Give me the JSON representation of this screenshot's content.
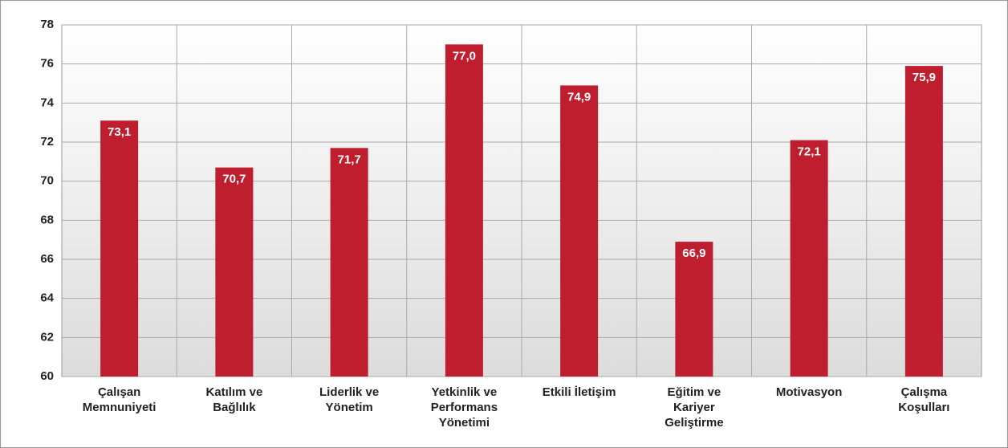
{
  "chart_data": {
    "type": "bar",
    "categories": [
      "Çalışan Memnuniyeti",
      "Katılım ve Bağlılık",
      "Liderlik ve Yönetim",
      "Yetkinlik ve Performans Yönetimi",
      "Etkili İletişim",
      "Eğitim ve Kariyer Geliştirme",
      "Motivasyon",
      "Çalışma Koşulları"
    ],
    "values": [
      73.1,
      70.7,
      71.7,
      77.0,
      74.9,
      66.9,
      72.1,
      75.9
    ],
    "value_labels": [
      "73,1",
      "70,7",
      "71,7",
      "77,0",
      "74,9",
      "66,9",
      "72,1",
      "75,9"
    ],
    "color": "#be1e2d",
    "ylim": [
      60,
      78
    ],
    "yticks": [
      60,
      62,
      64,
      66,
      68,
      70,
      72,
      74,
      76,
      78
    ],
    "grid": true
  }
}
